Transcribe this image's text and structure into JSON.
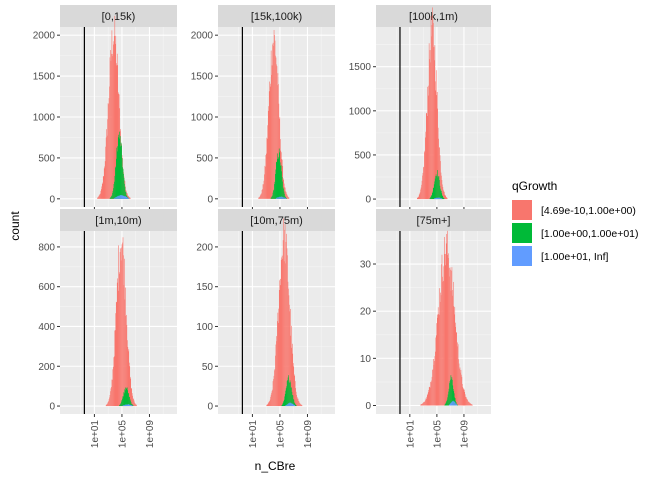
{
  "chart_data": {
    "type": "histogram-facets",
    "xlabel": "n_CBre",
    "ylabel": "count",
    "x_scale": "log10",
    "x_ticks": [
      {
        "value": 10,
        "label": "1e+01"
      },
      {
        "value": 100000,
        "label": "1e+05"
      },
      {
        "value": 1000000000,
        "label": "1e+09"
      }
    ],
    "x_range": [
      0.0001,
      10000000000000
    ],
    "vline_x": 0.35,
    "legend": {
      "title": "qGrowth",
      "position": "right",
      "items": [
        {
          "label": "[4.69e-10,1.00e+00)",
          "color": "#F8766D"
        },
        {
          "label": "[1.00e+00,1.00e+01)",
          "color": "#00BA38"
        },
        {
          "label": "[1.00e+01,    Inf]",
          "color": "#619CFF"
        }
      ]
    },
    "facets": [
      {
        "title": "[0,15k)",
        "y_ticks": [
          0,
          500,
          1000,
          1500,
          2000
        ],
        "ylim": [
          -100,
          2100
        ],
        "series": [
          {
            "name": "[4.69e-10,1.00e+00)",
            "mu": 3.8,
            "sigma": 0.75,
            "peak": 2000
          },
          {
            "name": "[1.00e+00,1.00e+01)",
            "mu": 4.6,
            "sigma": 0.45,
            "peak": 760
          },
          {
            "name": "[1.00e+01,    Inf]",
            "mu": 4.9,
            "sigma": 0.6,
            "peak": 45
          }
        ]
      },
      {
        "title": "[15k,100k)",
        "y_ticks": [
          0,
          500,
          1000,
          1500,
          2000
        ],
        "ylim": [
          -100,
          2100
        ],
        "series": [
          {
            "name": "[4.69e-10,1.00e+00)",
            "mu": 4.1,
            "sigma": 0.7,
            "peak": 1950
          },
          {
            "name": "[1.00e+00,1.00e+01)",
            "mu": 4.8,
            "sigma": 0.4,
            "peak": 560
          },
          {
            "name": "[1.00e+01,    Inf]",
            "mu": 5.1,
            "sigma": 0.5,
            "peak": 25
          }
        ]
      },
      {
        "title": "[100k,1m)",
        "y_ticks": [
          0,
          500,
          1000,
          1500
        ],
        "ylim": [
          -90,
          1950
        ],
        "series": [
          {
            "name": "[4.69e-10,1.00e+00)",
            "mu": 4.3,
            "sigma": 0.7,
            "peak": 1900
          },
          {
            "name": "[1.00e+00,1.00e+01)",
            "mu": 5.0,
            "sigma": 0.4,
            "peak": 300
          },
          {
            "name": "[1.00e+01,    Inf]",
            "mu": 5.2,
            "sigma": 0.5,
            "peak": 15
          }
        ]
      },
      {
        "title": "[1m,10m)",
        "y_ticks": [
          0,
          200,
          400,
          600,
          800
        ],
        "ylim": [
          -40,
          880
        ],
        "series": [
          {
            "name": "[4.69e-10,1.00e+00)",
            "mu": 4.9,
            "sigma": 0.7,
            "peak": 830
          },
          {
            "name": "[1.00e+00,1.00e+01)",
            "mu": 5.6,
            "sigma": 0.4,
            "peak": 90
          },
          {
            "name": "[1.00e+01,    Inf]",
            "mu": 5.8,
            "sigma": 0.5,
            "peak": 8
          }
        ]
      },
      {
        "title": "[10m,75m)",
        "y_ticks": [
          0,
          50,
          100,
          150,
          200
        ],
        "ylim": [
          -10,
          220
        ],
        "series": [
          {
            "name": "[4.69e-10,1.00e+00)",
            "mu": 5.6,
            "sigma": 0.8,
            "peak": 210
          },
          {
            "name": "[1.00e+00,1.00e+01)",
            "mu": 6.3,
            "sigma": 0.4,
            "peak": 35
          },
          {
            "name": "[1.00e+01,    Inf]",
            "mu": 6.5,
            "sigma": 0.4,
            "peak": 4
          }
        ]
      },
      {
        "title": "[75m+]",
        "y_ticks": [
          0,
          10,
          20,
          30
        ],
        "ylim": [
          -1.8,
          37
        ],
        "series": [
          {
            "name": "[4.69e-10,1.00e+00)",
            "mu": 6.4,
            "sigma": 1.2,
            "peak": 33
          },
          {
            "name": "[1.00e+00,1.00e+01)",
            "mu": 7.1,
            "sigma": 0.35,
            "peak": 6
          },
          {
            "name": "[1.00e+01,    Inf]",
            "mu": 7.4,
            "sigma": 0.3,
            "peak": 1
          }
        ]
      }
    ]
  }
}
